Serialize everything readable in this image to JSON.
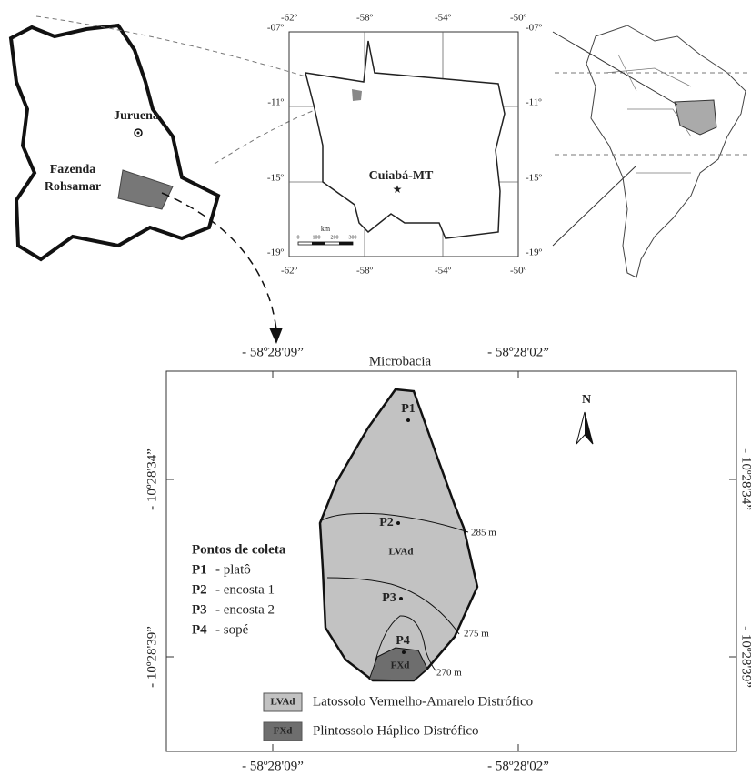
{
  "location_map": {
    "town": "Juruena",
    "farm": [
      "Fazenda",
      "Rohsamar"
    ]
  },
  "state_map": {
    "lon_labels": [
      "-62º",
      "-58º",
      "-54º",
      "-50º"
    ],
    "lat_labels": [
      "-07º",
      "-11º",
      "-15º",
      "-19º"
    ],
    "capital": "Cuiabá-MT",
    "scale_unit": "km",
    "scale_labels": [
      "0",
      "100",
      "200",
      "300"
    ]
  },
  "microbacia": {
    "title": "Microbacia",
    "lon_labels": [
      "- 58º28'09”",
      "- 58º28'02”"
    ],
    "lat_labels": [
      "- 10º28'34”",
      "- 10º28'39”"
    ],
    "north": "N",
    "points": [
      "P1",
      "P2",
      "P3",
      "P4"
    ],
    "soil_labels": [
      "LVAd",
      "FXd"
    ],
    "contours": [
      "285 m",
      "275 m",
      "270 m"
    ],
    "sampling": {
      "title": "Pontos de coleta",
      "items": [
        {
          "id": "P1",
          "desc": "- platô"
        },
        {
          "id": "P2",
          "desc": "- encosta 1"
        },
        {
          "id": "P3",
          "desc": "- encosta 2"
        },
        {
          "id": "P4",
          "desc": "- sopé"
        }
      ]
    },
    "legend": [
      {
        "code": "LVAd",
        "label": "Latossolo Vermelho-Amarelo Distrófico"
      },
      {
        "code": "FXd",
        "label": "Plintossolo Háplico Distrófico"
      }
    ]
  }
}
